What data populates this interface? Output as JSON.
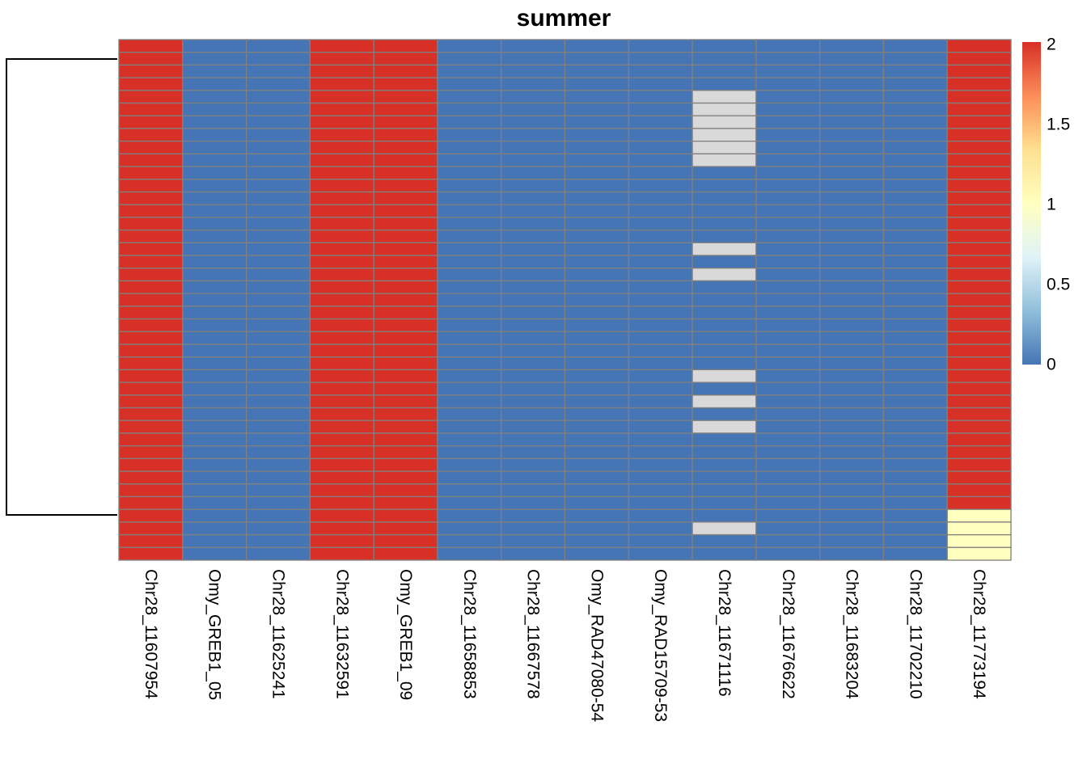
{
  "chart_data": {
    "type": "heatmap",
    "title": "summer",
    "columns": [
      "Chr28_11607954",
      "Omy_GREB1_05",
      "Chr28_11625241",
      "Chr28_11632591",
      "Omy_GREB1_09",
      "Chr28_11658853",
      "Chr28_11667578",
      "Omy_RAD47080-54",
      "Omy_RAD15709-53",
      "Chr28_11671116",
      "Chr28_11676622",
      "Chr28_11683204",
      "Chr28_11702210",
      "Chr28_11773194"
    ],
    "n_rows": 41,
    "base_row": [
      2,
      0,
      0,
      2,
      2,
      0,
      0,
      0,
      0,
      0,
      0,
      0,
      0,
      2
    ],
    "missing": [
      {
        "column": "Chr28_11671116",
        "rows": [
          4,
          5,
          6,
          7,
          8,
          9,
          16,
          18,
          26,
          28,
          30,
          38
        ]
      }
    ],
    "overrides": [
      {
        "column": "Chr28_11773194",
        "rows": [
          37,
          38,
          39,
          40
        ],
        "value": 1
      }
    ],
    "color_scale": {
      "min": 0,
      "max": 2,
      "stops": [
        "#4575B4",
        "#91BFDB",
        "#E0F3F8",
        "#FFFFBF",
        "#FEE090",
        "#FC8D59",
        "#D73027"
      ],
      "missing_color": "#D9D9D9",
      "grid_color": "#808080"
    },
    "legend": {
      "ticks": [
        "0",
        "0.5",
        "1",
        "1.5",
        "2"
      ],
      "values": [
        0,
        0.5,
        1,
        1.5,
        2
      ],
      "position": "right"
    },
    "dendrogram": {
      "side": "left",
      "split_after_row": 36,
      "cluster_rows": [
        [
          0,
          36
        ],
        [
          37,
          40
        ]
      ]
    }
  }
}
